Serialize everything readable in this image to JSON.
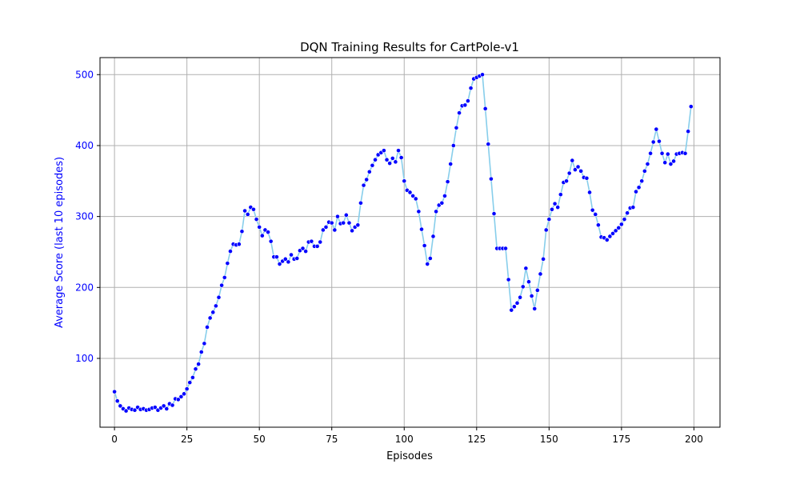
{
  "chart_data": {
    "type": "line",
    "title": "DQN Training Results for CartPole-v1",
    "xlabel": "Episodes",
    "ylabel": "Average Score (last 10 episodes)",
    "xlim": [
      -5,
      209
    ],
    "ylim": [
      3,
      524
    ],
    "xticks": [
      0,
      25,
      50,
      75,
      100,
      125,
      150,
      175,
      200
    ],
    "yticks": [
      100,
      200,
      300,
      400,
      500
    ],
    "grid": true,
    "line_color": "#87ceeb",
    "marker_color": "#0000ff",
    "ylabel_color": "#0000ff",
    "series": [
      {
        "x": [
          0,
          1,
          2,
          3,
          4,
          5,
          6,
          7,
          8,
          9,
          10,
          11,
          12,
          13,
          14,
          15,
          16,
          17,
          18,
          19,
          20,
          21,
          22,
          23,
          24,
          25,
          26,
          27,
          28,
          29,
          30,
          31,
          32,
          33,
          34,
          35,
          36,
          37,
          38,
          39,
          40,
          41,
          42,
          43,
          44,
          45,
          46,
          47,
          48,
          49,
          50,
          51,
          52,
          53,
          54,
          55,
          56,
          57,
          58,
          59,
          60,
          61,
          62,
          63,
          64,
          65,
          66,
          67,
          68,
          69,
          70,
          71,
          72,
          73,
          74,
          75,
          76,
          77,
          78,
          79,
          80,
          81,
          82,
          83,
          84,
          85,
          86,
          87,
          88,
          89,
          90,
          91,
          92,
          93,
          94,
          95,
          96,
          97,
          98,
          99,
          100,
          101,
          102,
          103,
          104,
          105,
          106,
          107,
          108,
          109,
          110,
          111,
          112,
          113,
          114,
          115,
          116,
          117,
          118,
          119,
          120,
          121,
          122,
          123,
          124,
          125,
          126,
          127,
          128,
          129,
          130,
          131,
          132,
          133,
          134,
          135,
          136,
          137,
          138,
          139,
          140,
          141,
          142,
          143,
          144,
          145,
          146,
          147,
          148,
          149,
          150,
          151,
          152,
          153,
          154,
          155,
          156,
          157,
          158,
          159,
          160,
          161,
          162,
          163,
          164,
          165,
          166,
          167,
          168,
          169,
          170,
          171,
          172,
          173,
          174,
          175,
          176,
          177,
          178,
          179,
          180,
          181,
          182,
          183,
          184,
          185,
          186,
          187,
          188,
          189,
          190,
          191,
          192,
          193,
          194,
          195,
          196,
          197,
          198,
          199
        ],
        "y": [
          53,
          40,
          33,
          29,
          26,
          30,
          28,
          27,
          31,
          28,
          29,
          27,
          28,
          30,
          31,
          27,
          30,
          33,
          29,
          36,
          34,
          43,
          42,
          46,
          50,
          57,
          66,
          73,
          85,
          92,
          109,
          121,
          144,
          157,
          165,
          174,
          186,
          203,
          214,
          234,
          251,
          261,
          260,
          261,
          279,
          308,
          303,
          313,
          310,
          296,
          285,
          273,
          281,
          278,
          265,
          243,
          243,
          233,
          237,
          240,
          236,
          246,
          240,
          241,
          252,
          255,
          251,
          264,
          265,
          258,
          258,
          264,
          281,
          285,
          292,
          291,
          281,
          300,
          290,
          291,
          302,
          291,
          280,
          285,
          288,
          319,
          344,
          352,
          363,
          372,
          380,
          387,
          390,
          393,
          380,
          375,
          382,
          377,
          393,
          383,
          350,
          337,
          334,
          329,
          325,
          307,
          282,
          259,
          233,
          241,
          272,
          307,
          316,
          319,
          329,
          349,
          374,
          400,
          425,
          446,
          456,
          457,
          463,
          481,
          494,
          496,
          498,
          500,
          452,
          402,
          353,
          304,
          255,
          255,
          255,
          255,
          211,
          168,
          173,
          178,
          186,
          201,
          227,
          208,
          188,
          170,
          196,
          219,
          240,
          281,
          296,
          310,
          318,
          313,
          331,
          348,
          350,
          361,
          379,
          366,
          370,
          364,
          355,
          354,
          334,
          309,
          303,
          288,
          271,
          270,
          267,
          272,
          276,
          280,
          284,
          289,
          296,
          305,
          312,
          313,
          335,
          341,
          350,
          364,
          374,
          389,
          405,
          423,
          406,
          389,
          376,
          388,
          374,
          378,
          388,
          389,
          390,
          389,
          420,
          455
        ]
      }
    ]
  }
}
